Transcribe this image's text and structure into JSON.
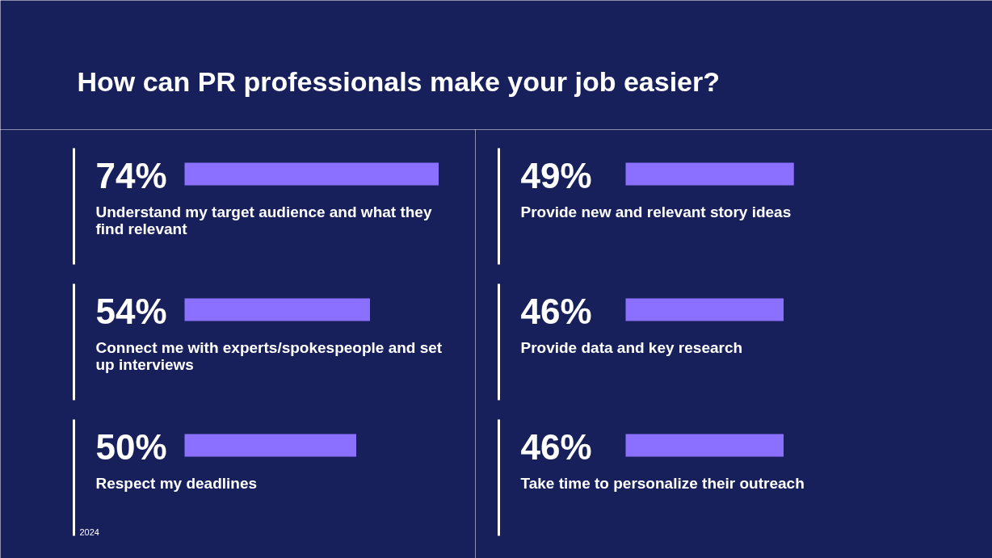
{
  "chart_data": [
    {
      "type": "bar",
      "orientation": "horizontal",
      "title": "How can PR professionals make your job easier?",
      "categories": [
        "Understand my target audience and what they find relevant",
        "Connect me with experts/spokespeople and set up interviews",
        "Respect my deadlines"
      ],
      "values": [
        74,
        54,
        50
      ],
      "value_labels": [
        "74%",
        "54%",
        "50%"
      ],
      "color": "#8b70ff",
      "annotations": [
        "2024"
      ]
    },
    {
      "type": "bar",
      "orientation": "horizontal",
      "categories": [
        "Provide new and relevant story ideas",
        "Provide data and key research",
        "Take time to personalize their outreach"
      ],
      "values": [
        49,
        46,
        46
      ],
      "value_labels": [
        "49%",
        "46%",
        "46%"
      ],
      "color": "#8b70ff"
    }
  ]
}
